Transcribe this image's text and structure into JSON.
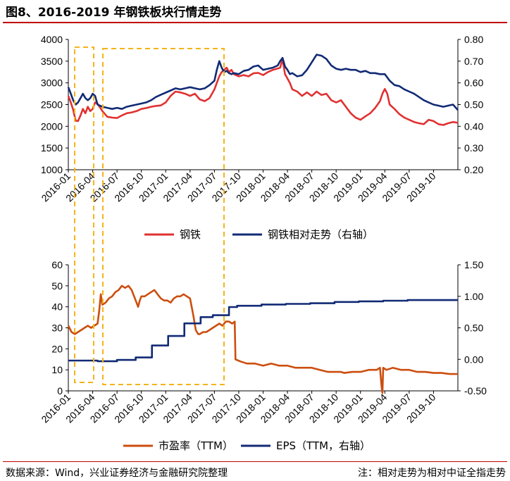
{
  "title": "图8、2016-2019 年钢铁板块行情走势",
  "footer": {
    "source": "数据来源：Wind，兴业证券经济与金融研究院整理",
    "note": "注：相对走势为相对中证全指走势"
  },
  "colors": {
    "red": "#e03131",
    "navy": "#112a75",
    "orange": "#cc4e0e",
    "highlight": "#f4b41a",
    "title_rule": "#c00000"
  },
  "chart_data": [
    {
      "type": "line",
      "title": "",
      "x_tick_labels": [
        "2016-01",
        "2016-04",
        "2016-07",
        "2016-10",
        "2017-01",
        "2017-04",
        "2017-07",
        "2017-10",
        "2018-01",
        "2018-04",
        "2018-07",
        "2018-10",
        "2019-01",
        "2019-04",
        "2019-07",
        "2019-10"
      ],
      "x_tick_months": [
        0,
        3,
        6,
        9,
        12,
        15,
        18,
        21,
        24,
        27,
        30,
        33,
        36,
        39,
        42,
        45
      ],
      "x_range_months": [
        0,
        48
      ],
      "y_left": {
        "ticks": [
          1000,
          1500,
          2000,
          2500,
          3000,
          3500,
          4000
        ],
        "tick_labels": [
          "1000",
          "1500",
          "2000",
          "2500",
          "3000",
          "3500",
          "4000"
        ],
        "range": [
          1000,
          4000
        ]
      },
      "y_right": {
        "ticks": [
          0.2,
          0.3,
          0.4,
          0.5,
          0.6,
          0.7,
          0.8
        ],
        "tick_labels": [
          "0.20",
          "0.30",
          "0.40",
          "0.50",
          "0.60",
          "0.70",
          "0.80"
        ],
        "range": [
          0.2,
          0.8
        ]
      },
      "series": [
        {
          "name": "钢铁",
          "axis": "left",
          "color": "#e03131",
          "x": [
            0,
            0.3,
            0.6,
            0.9,
            1.2,
            1.5,
            1.8,
            2.1,
            2.4,
            2.7,
            3.0,
            3.3,
            3.6,
            4.2,
            4.8,
            5.4,
            6.0,
            6.6,
            7.2,
            7.8,
            8.4,
            9.0,
            9.6,
            10.2,
            10.8,
            11.4,
            12.0,
            12.6,
            13.2,
            13.8,
            14.4,
            15.0,
            15.6,
            16.2,
            16.8,
            17.4,
            18.0,
            18.3,
            18.6,
            18.9,
            19.2,
            19.5,
            19.8,
            20.1,
            20.4,
            21.0,
            21.6,
            22.2,
            22.8,
            23.4,
            24.0,
            24.6,
            25.2,
            25.8,
            26.1,
            26.4,
            26.7,
            27.0,
            27.3,
            27.6,
            28.2,
            28.8,
            29.4,
            30.0,
            30.6,
            31.2,
            31.8,
            32.4,
            33.0,
            33.6,
            34.2,
            34.8,
            35.4,
            36.0,
            36.6,
            37.2,
            37.8,
            38.4,
            38.7,
            39.0,
            39.3,
            39.6,
            40.2,
            40.8,
            41.4,
            42.0,
            42.6,
            43.2,
            43.8,
            44.4,
            45.0,
            45.6,
            46.2,
            46.8,
            47.4,
            48.0
          ],
          "y": [
            2700,
            2550,
            2380,
            2130,
            2120,
            2250,
            2400,
            2300,
            2450,
            2350,
            2400,
            2550,
            2520,
            2350,
            2220,
            2200,
            2190,
            2250,
            2300,
            2320,
            2350,
            2400,
            2420,
            2450,
            2470,
            2480,
            2550,
            2700,
            2800,
            2780,
            2750,
            2700,
            2750,
            2620,
            2580,
            2650,
            2850,
            3000,
            3150,
            3250,
            3300,
            3350,
            3250,
            3300,
            3200,
            3150,
            3180,
            3150,
            3220,
            3230,
            3180,
            3250,
            3300,
            3330,
            3350,
            3550,
            3200,
            3100,
            3000,
            2850,
            2800,
            2700,
            2780,
            2700,
            2800,
            2720,
            2750,
            2600,
            2550,
            2600,
            2450,
            2300,
            2200,
            2150,
            2230,
            2300,
            2420,
            2580,
            2750,
            2860,
            2750,
            2500,
            2400,
            2280,
            2200,
            2150,
            2100,
            2070,
            2050,
            2150,
            2120,
            2050,
            2030,
            2070,
            2100,
            2080
          ]
        },
        {
          "name": "钢铁相对走势（右轴）",
          "axis": "right",
          "color": "#112a75",
          "x": [
            0,
            0.3,
            0.6,
            0.9,
            1.2,
            1.5,
            1.8,
            2.1,
            2.4,
            2.7,
            3.0,
            3.3,
            3.6,
            4.2,
            4.8,
            5.4,
            6.0,
            6.6,
            7.2,
            7.8,
            8.4,
            9.0,
            9.6,
            10.2,
            10.8,
            11.4,
            12.0,
            12.6,
            13.2,
            13.8,
            14.4,
            15.0,
            15.6,
            16.2,
            16.8,
            17.4,
            18.0,
            18.3,
            18.6,
            18.9,
            19.2,
            19.5,
            19.8,
            20.1,
            20.4,
            21.0,
            21.6,
            22.2,
            22.8,
            23.4,
            24.0,
            24.6,
            25.2,
            25.8,
            26.1,
            26.4,
            26.7,
            27.0,
            27.3,
            27.6,
            28.2,
            28.8,
            29.4,
            30.0,
            30.6,
            31.2,
            31.8,
            32.4,
            33.0,
            33.6,
            34.2,
            34.8,
            35.4,
            36.0,
            36.6,
            37.2,
            37.8,
            38.4,
            38.7,
            39.0,
            39.3,
            39.6,
            40.2,
            40.8,
            41.4,
            42.0,
            42.6,
            43.2,
            43.8,
            44.4,
            45.0,
            45.6,
            46.2,
            46.8,
            47.4,
            48.0
          ],
          "y": [
            0.58,
            0.55,
            0.52,
            0.5,
            0.51,
            0.53,
            0.55,
            0.53,
            0.52,
            0.53,
            0.55,
            0.54,
            0.5,
            0.49,
            0.485,
            0.48,
            0.485,
            0.48,
            0.49,
            0.495,
            0.5,
            0.505,
            0.51,
            0.52,
            0.535,
            0.545,
            0.555,
            0.565,
            0.575,
            0.57,
            0.575,
            0.58,
            0.575,
            0.57,
            0.575,
            0.59,
            0.61,
            0.66,
            0.7,
            0.67,
            0.65,
            0.655,
            0.645,
            0.64,
            0.645,
            0.64,
            0.655,
            0.66,
            0.675,
            0.68,
            0.66,
            0.665,
            0.67,
            0.68,
            0.7,
            0.715,
            0.675,
            0.66,
            0.64,
            0.645,
            0.63,
            0.635,
            0.66,
            0.695,
            0.73,
            0.725,
            0.71,
            0.68,
            0.665,
            0.66,
            0.665,
            0.66,
            0.66,
            0.65,
            0.655,
            0.645,
            0.645,
            0.64,
            0.64,
            0.64,
            0.625,
            0.61,
            0.59,
            0.585,
            0.57,
            0.56,
            0.55,
            0.535,
            0.52,
            0.51,
            0.5,
            0.495,
            0.49,
            0.495,
            0.5,
            0.475
          ]
        }
      ],
      "legend": [
        "钢铁",
        "钢铁相对走势（右轴）"
      ],
      "legend_position": "bottom"
    },
    {
      "type": "line",
      "title": "",
      "x_tick_labels": [
        "2016-01",
        "2016-04",
        "2016-07",
        "2016-10",
        "2017-01",
        "2017-04",
        "2017-07",
        "2017-10",
        "2018-01",
        "2018-04",
        "2018-07",
        "2018-10",
        "2019-01",
        "2019-04",
        "2019-07",
        "2019-10"
      ],
      "x_tick_months": [
        0,
        3,
        6,
        9,
        12,
        15,
        18,
        21,
        24,
        27,
        30,
        33,
        36,
        39,
        42,
        45
      ],
      "x_range_months": [
        0,
        48
      ],
      "y_left": {
        "ticks": [
          0,
          10,
          20,
          30,
          40,
          50,
          60
        ],
        "tick_labels": [
          "0",
          "10",
          "20",
          "30",
          "40",
          "50",
          "60"
        ],
        "range": [
          0,
          60
        ]
      },
      "y_right": {
        "ticks": [
          -0.5,
          0.0,
          0.5,
          1.0,
          1.5
        ],
        "tick_labels": [
          "-0.50",
          "0.00",
          "0.50",
          "1.00",
          "1.50"
        ],
        "range": [
          -0.5,
          1.5
        ]
      },
      "series": [
        {
          "name": "市盈率（TTM）",
          "axis": "left",
          "color": "#cc4e0e",
          "x": [
            0,
            0.4,
            0.8,
            1.2,
            1.6,
            2.0,
            2.4,
            2.8,
            3.2,
            3.6,
            3.8,
            4.0,
            4.2,
            4.6,
            5.0,
            5.4,
            5.8,
            6.2,
            6.6,
            7.0,
            7.4,
            7.8,
            8.2,
            8.6,
            8.8,
            9.0,
            9.4,
            9.8,
            10.2,
            10.6,
            11.0,
            11.4,
            11.8,
            12.2,
            12.6,
            13.0,
            13.4,
            13.8,
            14.2,
            14.6,
            15.0,
            15.4,
            15.7,
            16.0,
            16.2,
            16.6,
            17.0,
            17.4,
            17.8,
            18.2,
            18.6,
            19.0,
            19.4,
            19.8,
            20.2,
            20.5,
            20.6,
            21.2,
            22.0,
            23.0,
            24.0,
            25.0,
            26.0,
            27.0,
            28.0,
            29.0,
            30.0,
            31.0,
            32.0,
            33.0,
            33.6,
            34.0,
            35.0,
            36.0,
            37.0,
            38.0,
            38.4,
            38.6,
            38.7,
            38.8,
            39.2,
            40.0,
            41.0,
            42.0,
            43.0,
            44.0,
            45.0,
            46.0,
            47.0,
            48.0
          ],
          "y": [
            31,
            28,
            27,
            28,
            29,
            30,
            31,
            30,
            31,
            32,
            38,
            46,
            41,
            42,
            44,
            45,
            47,
            48,
            50,
            49,
            50,
            48,
            44,
            40,
            43,
            45,
            45,
            46,
            47,
            48,
            46,
            44,
            43,
            43,
            42,
            44,
            45,
            45,
            46,
            45,
            44,
            36,
            29,
            27,
            27,
            28,
            28,
            29,
            30,
            31,
            32,
            31,
            33,
            33,
            32,
            33,
            15,
            14,
            13,
            13,
            12,
            13,
            12,
            12,
            11,
            11,
            11,
            10,
            9,
            9,
            9,
            8.5,
            9,
            9,
            10,
            10,
            11,
            2,
            -1,
            11,
            10,
            11,
            10,
            10,
            9,
            9,
            8.5,
            8.5,
            8,
            8
          ]
        },
        {
          "name": "EPS（TTM，右轴）",
          "axis": "right",
          "color": "#112a75",
          "x": [
            0,
            3.6,
            3.6,
            6.0,
            6.0,
            8.3,
            8.3,
            10.3,
            10.3,
            12.3,
            12.3,
            14.3,
            14.3,
            16.3,
            16.3,
            17.8,
            17.8,
            19.8,
            19.8,
            20.8,
            20.8,
            23.8,
            23.8,
            26.8,
            26.8,
            29.8,
            29.8,
            32.8,
            32.8,
            35.8,
            35.8,
            38.8,
            38.8,
            41.8,
            41.8,
            48.0
          ],
          "y": [
            -0.02,
            -0.02,
            -0.03,
            -0.03,
            -0.01,
            -0.01,
            0.03,
            0.03,
            0.22,
            0.22,
            0.37,
            0.37,
            0.57,
            0.57,
            0.67,
            0.67,
            0.7,
            0.7,
            0.83,
            0.83,
            0.85,
            0.85,
            0.87,
            0.87,
            0.88,
            0.88,
            0.89,
            0.89,
            0.91,
            0.91,
            0.92,
            0.92,
            0.93,
            0.93,
            0.94,
            0.94
          ]
        }
      ],
      "legend": [
        "市盈率（TTM）",
        "EPS（TTM，右轴）"
      ],
      "legend_position": "bottom"
    }
  ]
}
